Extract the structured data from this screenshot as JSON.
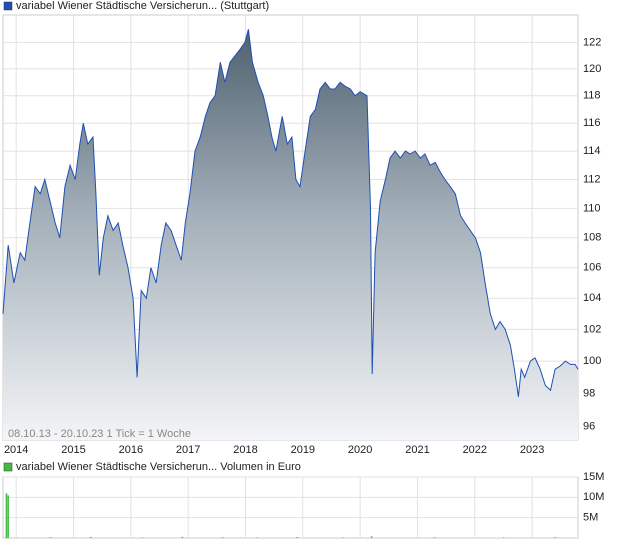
{
  "chart_data": [
    {
      "type": "area",
      "series": [
        {
          "name": "variabel Wiener Städtische Versicherun... (Stuttgart)",
          "color": "#1f4fb4",
          "x": [
            2013.77,
            2013.86,
            2013.96,
            2014.07,
            2014.15,
            2014.24,
            2014.33,
            2014.42,
            2014.5,
            2014.59,
            2014.68,
            2014.76,
            2014.85,
            2014.94,
            2015.03,
            2015.11,
            2015.17,
            2015.25,
            2015.34,
            2015.39,
            2015.45,
            2015.52,
            2015.6,
            2015.69,
            2015.78,
            2015.86,
            2015.95,
            2016.04,
            2016.11,
            2016.18,
            2016.27,
            2016.35,
            2016.44,
            2016.53,
            2016.61,
            2016.7,
            2016.79,
            2016.88,
            2016.95,
            2017.03,
            2017.12,
            2017.21,
            2017.3,
            2017.38,
            2017.47,
            2017.56,
            2017.64,
            2017.73,
            2017.82,
            2017.91,
            2017.99,
            2018.05,
            2018.12,
            2018.22,
            2018.31,
            2018.39,
            2018.46,
            2018.53,
            2018.64,
            2018.73,
            2018.81,
            2018.88,
            2018.95,
            2019.04,
            2019.13,
            2019.22,
            2019.3,
            2019.39,
            2019.48,
            2019.56,
            2019.65,
            2019.74,
            2019.83,
            2019.91,
            2020.0,
            2020.12,
            2020.18,
            2020.21,
            2020.26,
            2020.35,
            2020.44,
            2020.52,
            2020.61,
            2020.7,
            2020.79,
            2020.87,
            2020.96,
            2021.05,
            2021.13,
            2021.22,
            2021.31,
            2021.4,
            2021.48,
            2021.57,
            2021.66,
            2021.75,
            2021.83,
            2021.92,
            2022.01,
            2022.1,
            2022.18,
            2022.27,
            2022.36,
            2022.44,
            2022.53,
            2022.62,
            2022.69,
            2022.76,
            2022.81,
            2022.87,
            2022.97,
            2023.05,
            2023.14,
            2023.23,
            2023.32,
            2023.4,
            2023.49,
            2023.58,
            2023.67,
            2023.75,
            2023.8
          ],
          "values": [
            103,
            107.5,
            105,
            107,
            106.5,
            109,
            111.5,
            111,
            112,
            110.5,
            109,
            108,
            111.5,
            113,
            112,
            114.5,
            116,
            114.5,
            115,
            111,
            105.5,
            108,
            109.5,
            108.5,
            109,
            107.5,
            106,
            104,
            99,
            104.5,
            104,
            106,
            105,
            107.5,
            109,
            108.5,
            107.5,
            106.5,
            109,
            111,
            114,
            115,
            116.5,
            117.5,
            118,
            120.5,
            119,
            120.5,
            121,
            121.5,
            122,
            123,
            120.5,
            119,
            118,
            116.5,
            115,
            114,
            116.5,
            114.5,
            115,
            112,
            111.5,
            114,
            116.5,
            117,
            118.5,
            119,
            118.5,
            118.5,
            119,
            118.7,
            118.5,
            118,
            118.3,
            118,
            110,
            99.2,
            107,
            110.5,
            112,
            113.5,
            114,
            113.5,
            114,
            113.8,
            114,
            113.5,
            113.8,
            113,
            113.2,
            112.5,
            112,
            111.5,
            111,
            109.5,
            109,
            108.5,
            108,
            107,
            105,
            103,
            102,
            102.5,
            102,
            101,
            99.5,
            97.8,
            99.5,
            99,
            100,
            100.2,
            99.5,
            98.5,
            98.2,
            99.5,
            99.7,
            100,
            99.8,
            99.8,
            99.5
          ]
        }
      ],
      "xlim": [
        2013.77,
        2023.8
      ],
      "xticks": [
        2014,
        2015,
        2016,
        2017,
        2018,
        2019,
        2020,
        2021,
        2022,
        2023
      ],
      "ylim": [
        95.2,
        124.1
      ],
      "yticks": [
        96,
        98,
        100,
        102,
        104,
        106,
        108,
        110,
        112,
        114,
        116,
        118,
        120,
        122
      ],
      "log_scale": true,
      "grid": true,
      "annotation": "08.10.13 - 20.10.23   1 Tick = 1 Woche"
    },
    {
      "type": "bar",
      "series": [
        {
          "name": "variabel Wiener Städtische Versicherun... Volumen in Euro",
          "color": "#44bb44",
          "x": [
            2013.83,
            2013.86,
            2014.6,
            2015.3,
            2016.2,
            2016.9,
            2017.6,
            2018.2,
            2018.9,
            2019.7,
            2020.2,
            2021.3,
            2022.5,
            2023.4
          ],
          "values": [
            11000000,
            10500000,
            200000,
            250000,
            150000,
            300000,
            200000,
            150000,
            250000,
            150000,
            400000,
            200000,
            150000,
            200000
          ]
        }
      ],
      "xlim": [
        2013.77,
        2023.8
      ],
      "xticks": [
        2014,
        2015,
        2016,
        2017,
        2018,
        2019,
        2020,
        2021,
        2022,
        2023
      ],
      "ylim": [
        0,
        15000000
      ],
      "yticks": [
        {
          "value": 5000000,
          "label": "5M"
        },
        {
          "value": 10000000,
          "label": "10M"
        },
        {
          "value": 15000000,
          "label": "15M"
        }
      ],
      "grid": true
    }
  ]
}
